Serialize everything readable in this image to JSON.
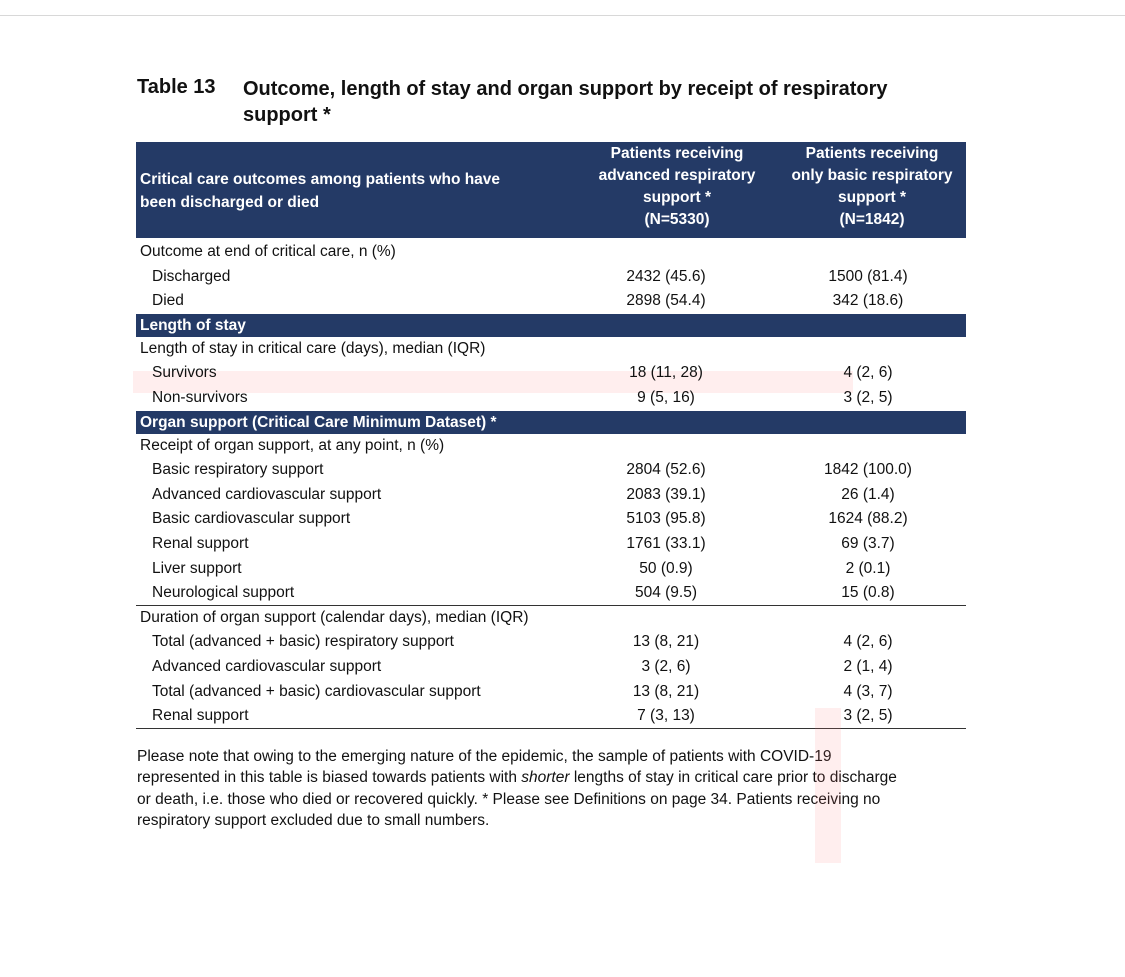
{
  "title": {
    "label": "Table 13",
    "text": "Outcome, length of stay and organ support by receipt of respiratory support *"
  },
  "table": {
    "header": [
      [
        "Critical care outcomes among patients who have",
        "been discharged or died"
      ],
      [
        "Patients receiving",
        "advanced respiratory",
        "support *",
        "(N=5330)"
      ],
      [
        "Patients receiving",
        "only basic respiratory",
        "support *",
        "(N=1842)"
      ]
    ],
    "blocks": [
      {
        "groups": [
          {
            "label": "Outcome at end of critical care, n (%)",
            "rows": [
              [
                "Discharged",
                "2432 (45.6)",
                "1500 (81.4)"
              ],
              [
                "Died",
                "2898 (54.4)",
                "342 (18.6)"
              ]
            ]
          }
        ]
      },
      {
        "heading": "Length of stay",
        "groups": [
          {
            "label": "Length of stay in critical care (days), median (IQR)",
            "rows": [
              [
                "Survivors",
                "18 (11, 28)",
                "4 (2, 6)"
              ],
              [
                "Non-survivors",
                "9 (5, 16)",
                "3 (2, 5)"
              ]
            ]
          }
        ]
      },
      {
        "heading": "Organ support (Critical Care Minimum Dataset) *",
        "groups": [
          {
            "label": "Receipt of organ support, at any point, n (%)",
            "rows": [
              [
                "Basic respiratory support",
                "2804 (52.6)",
                "1842 (100.0)"
              ],
              [
                "Advanced cardiovascular support",
                "2083 (39.1)",
                "26 (1.4)"
              ],
              [
                "Basic cardiovascular support",
                "5103 (95.8)",
                "1624 (88.2)"
              ],
              [
                "Renal support",
                "1761 (33.1)",
                "69 (3.7)"
              ],
              [
                "Liver support",
                "50 (0.9)",
                "2 (0.1)"
              ],
              [
                "Neurological support",
                "504 (9.5)",
                "15 (0.8)"
              ]
            ]
          },
          {
            "label": "Duration of organ support (calendar days), median (IQR)",
            "rows": [
              [
                "Total (advanced + basic) respiratory support",
                "13 (8, 21)",
                "4 (2, 6)"
              ],
              [
                "Advanced cardiovascular support",
                "3 (2, 6)",
                "2 (1, 4)"
              ],
              [
                "Total (advanced + basic) cardiovascular support",
                "13 (8, 21)",
                "4 (3, 7)"
              ],
              [
                "Renal support",
                "7 (3, 13)",
                "3 (2, 5)"
              ]
            ]
          }
        ]
      }
    ]
  },
  "note": {
    "lines": [
      "Please note that owing to the emerging nature of the epidemic, the sample of patients with COVID-19",
      {
        "before": "represented in this table is biased towards patients with ",
        "italic": "shorter",
        "after": " lengths of stay in critical care prior to discharge"
      },
      "or death, i.e. those who died or recovered quickly. * Please see Definitions on page 34. Patients receiving no",
      "respiratory support excluded due to small numbers."
    ]
  }
}
